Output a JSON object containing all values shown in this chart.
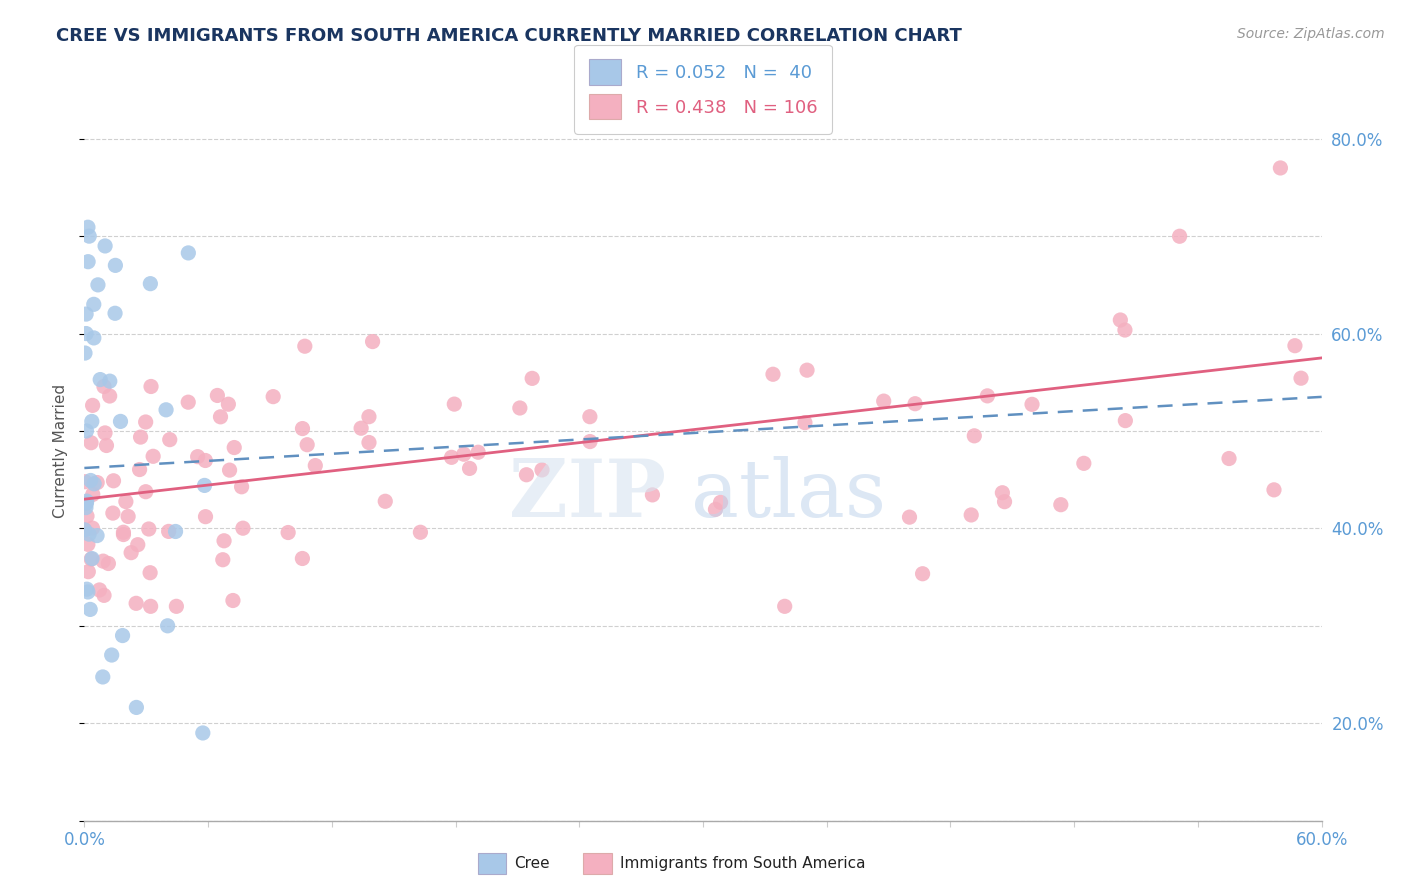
{
  "title": "CREE VS IMMIGRANTS FROM SOUTH AMERICA CURRENTLY MARRIED CORRELATION CHART",
  "source_text": "Source: ZipAtlas.com",
  "ylabel": "Currently Married",
  "xlim": [
    0.0,
    0.6
  ],
  "ylim": [
    0.1,
    0.86
  ],
  "ytick_vals": [
    0.2,
    0.4,
    0.6,
    0.8
  ],
  "ytick_labels": [
    "20.0%",
    "40.0%",
    "60.0%",
    "80.0%"
  ],
  "legend_cree_R": "0.052",
  "legend_cree_N": "40",
  "legend_sa_R": "0.438",
  "legend_sa_N": "106",
  "cree_color": "#a8c8e8",
  "sa_color": "#f4b0c0",
  "cree_line_color": "#6090c0",
  "sa_line_color": "#e06080",
  "background_color": "#ffffff",
  "cree_seed": 42,
  "sa_seed": 99
}
